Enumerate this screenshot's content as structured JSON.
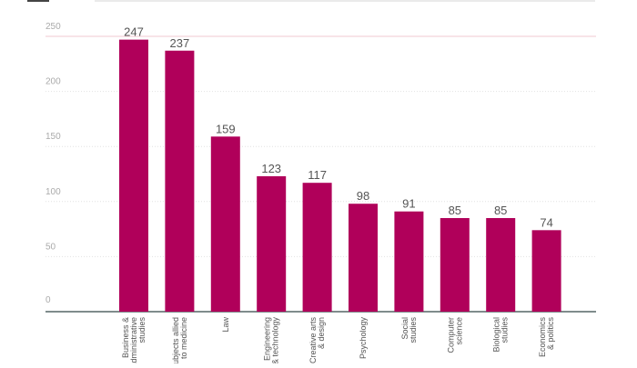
{
  "chart_data": {
    "type": "bar",
    "title": "",
    "xlabel": "",
    "ylabel": "",
    "ylim": [
      0,
      250
    ],
    "yticks": [
      0,
      50,
      100,
      150,
      200,
      250
    ],
    "grid": true,
    "bar_color": "#b0005a",
    "categories": [
      "Business & administrative studies",
      "Subjects allied to medicine",
      "Law",
      "Engineering & technology",
      "Creative arts & design",
      "Psychology",
      "Social studies",
      "Computer science",
      "Biological studies",
      "Economics & politics"
    ],
    "category_lines": [
      [
        "Business &",
        "administrative",
        "studies"
      ],
      [
        "Subjects allied",
        "to medicine"
      ],
      [
        "Law"
      ],
      [
        "Engineering",
        "& technology"
      ],
      [
        "Creative arts",
        "& design"
      ],
      [
        "Psychology"
      ],
      [
        "Social",
        "studies"
      ],
      [
        "Computer",
        "science"
      ],
      [
        "Biological",
        "studies"
      ],
      [
        "Economics",
        "& politics"
      ]
    ],
    "values": [
      247,
      237,
      159,
      123,
      117,
      98,
      91,
      85,
      85,
      74
    ]
  }
}
